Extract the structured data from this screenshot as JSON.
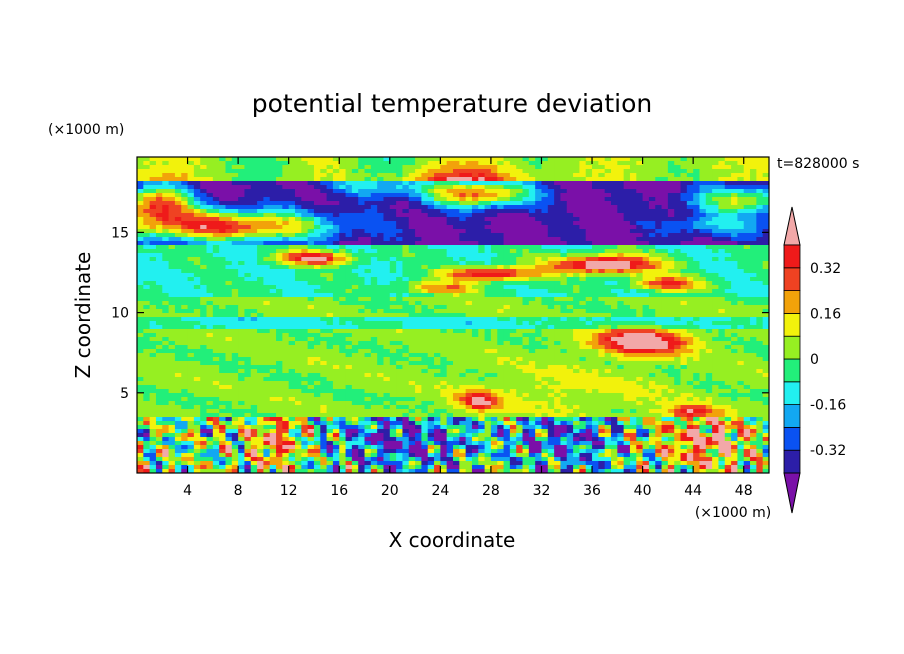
{
  "chart_data": {
    "type": "heatmap",
    "title": "potential temperature deviation",
    "xlabel": "X coordinate",
    "ylabel": "Z coordinate",
    "x_unit": "(×1000 m)",
    "y_unit": "(×1000 m)",
    "time_label": "t=828000 s",
    "xlim": [
      0,
      50
    ],
    "ylim": [
      0,
      19.7
    ],
    "x_ticks": [
      4,
      8,
      12,
      16,
      20,
      24,
      28,
      32,
      36,
      40,
      44,
      48
    ],
    "y_ticks": [
      5,
      10,
      15
    ],
    "colorbar": {
      "levels": [
        -0.4,
        -0.32,
        -0.24,
        -0.16,
        -0.08,
        0,
        0.08,
        0.16,
        0.24,
        0.32,
        0.4
      ],
      "tick_values": [
        -0.32,
        -0.16,
        0,
        0.16,
        0.32
      ],
      "tick_labels": [
        "-0.32",
        "-0.16",
        "0",
        "0.16",
        "0.32"
      ],
      "colors": [
        "#7a10a8",
        "#2c1ea8",
        "#0a52f2",
        "#12a8f2",
        "#22f0f0",
        "#22ef7a",
        "#96ef22",
        "#f2f20c",
        "#f2a20a",
        "#ef4222",
        "#ef1a1a",
        "#f2a8a8"
      ],
      "extend": "both"
    },
    "layers": [
      {
        "z_range": [
          18.2,
          19.7
        ],
        "dominant": 0.04,
        "note": "upper layer, mostly light green with cyan patches"
      },
      {
        "z_range": [
          14.3,
          18.2
        ],
        "dominant": -0.4,
        "note": "purple/navy band with pink maxima near x=0-14 and 24-33"
      },
      {
        "z_range": [
          11.0,
          14.3
        ],
        "dominant": -0.04,
        "note": "cyan/green with scattered pink streaks"
      },
      {
        "z_range": [
          3.6,
          11.0
        ],
        "dominant": 0.0,
        "note": "green/light green stable layer"
      },
      {
        "z_range": [
          0,
          3.6
        ],
        "dominant": 0.0,
        "note": "turbulent boundary layer, mixed extremes"
      }
    ]
  }
}
